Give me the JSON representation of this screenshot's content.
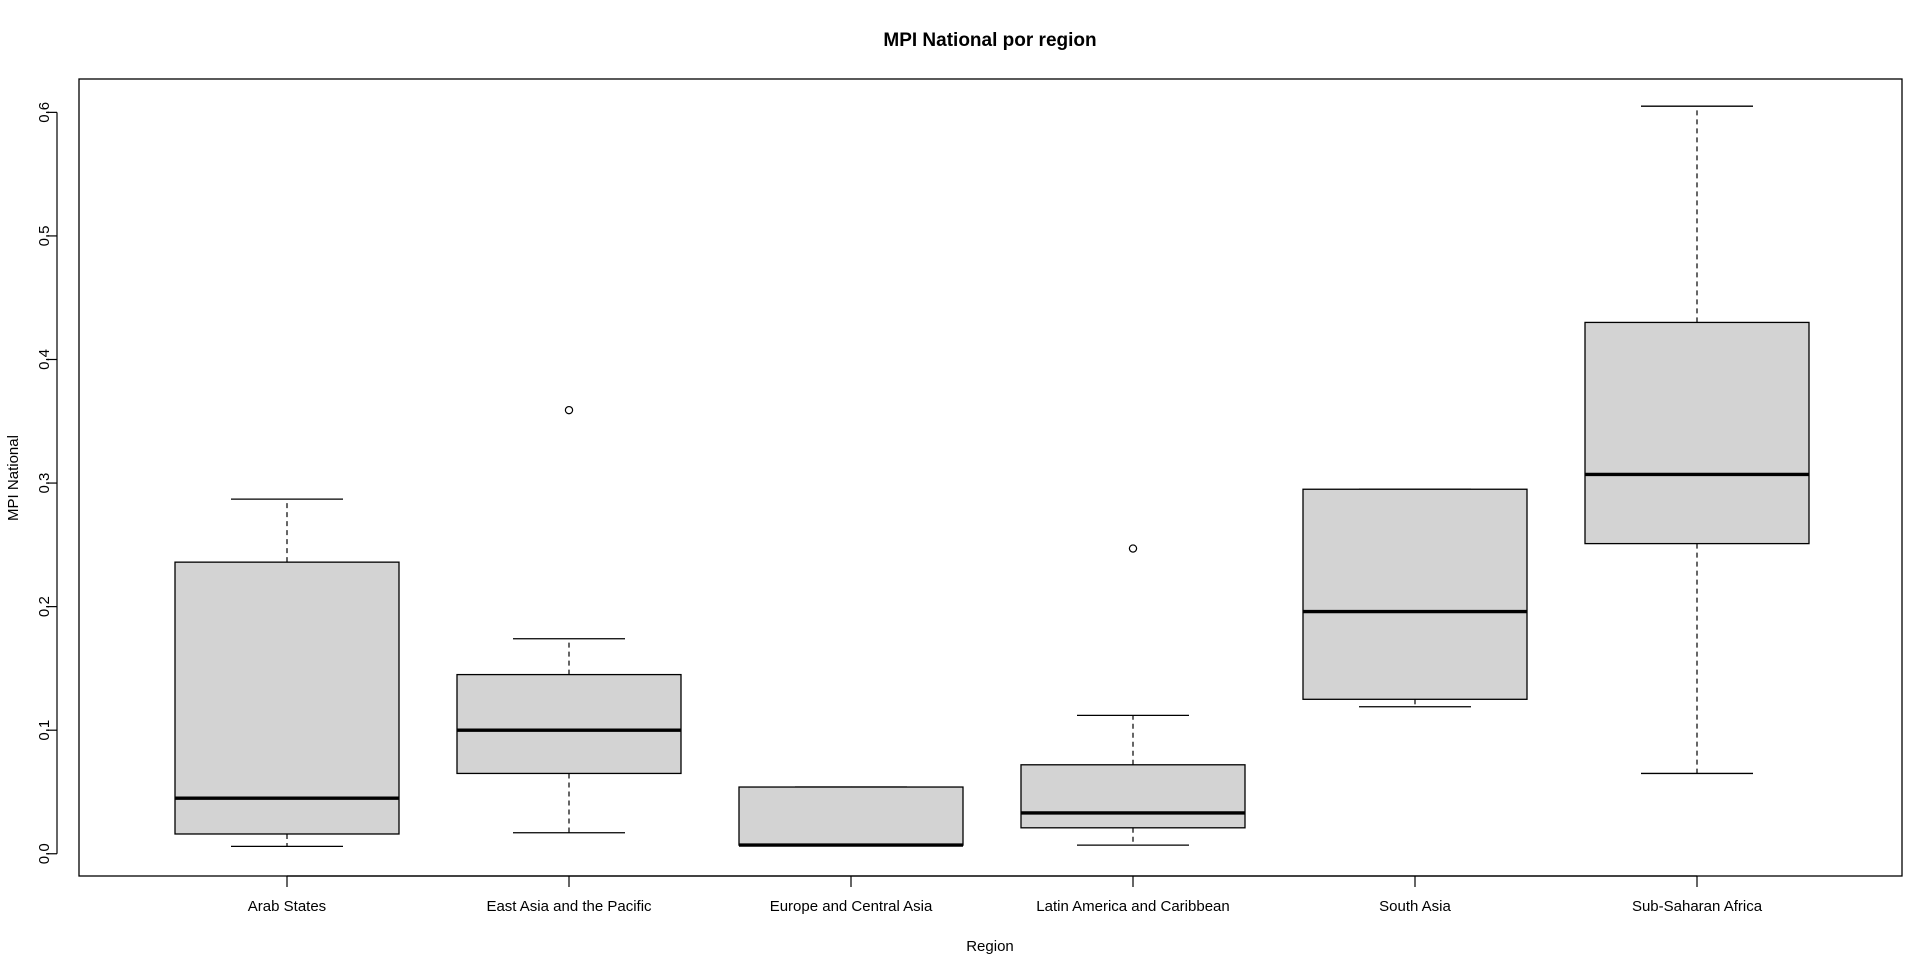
{
  "chart_data": {
    "type": "boxplot",
    "title": "MPI National por region",
    "xlabel": "Region",
    "ylabel": "MPI National",
    "ylim": [
      -0.018,
      0.627
    ],
    "yticks": [
      "0.0",
      "0.1",
      "0.2",
      "0.3",
      "0.4",
      "0.5",
      "0.6"
    ],
    "ytick_values": [
      0.0,
      0.1,
      0.2,
      0.3,
      0.4,
      0.5,
      0.6
    ],
    "grid": false,
    "box_color": "#d3d3d3",
    "line_color": "#000000",
    "categories": [
      "Arab States",
      "East Asia and the Pacific",
      "Europe and Central Asia",
      "Latin America and Caribbean",
      "South Asia",
      "Sub-Saharan Africa"
    ],
    "boxes": [
      {
        "min": 0.006,
        "q1": 0.016,
        "median": 0.045,
        "q3": 0.236,
        "max": 0.287,
        "outliers": []
      },
      {
        "min": 0.017,
        "q1": 0.065,
        "median": 0.1,
        "q3": 0.145,
        "max": 0.174,
        "outliers": [
          0.359
        ]
      },
      {
        "min": 0.007,
        "q1": 0.007,
        "median": 0.007,
        "q3": 0.054,
        "max": 0.054,
        "outliers": []
      },
      {
        "min": 0.007,
        "q1": 0.021,
        "median": 0.033,
        "q3": 0.072,
        "max": 0.112,
        "outliers": [
          0.247
        ]
      },
      {
        "min": 0.119,
        "q1": 0.125,
        "median": 0.196,
        "q3": 0.295,
        "max": 0.295,
        "outliers": []
      },
      {
        "min": 0.065,
        "q1": 0.251,
        "median": 0.307,
        "q3": 0.43,
        "max": 0.605,
        "outliers": []
      }
    ]
  }
}
